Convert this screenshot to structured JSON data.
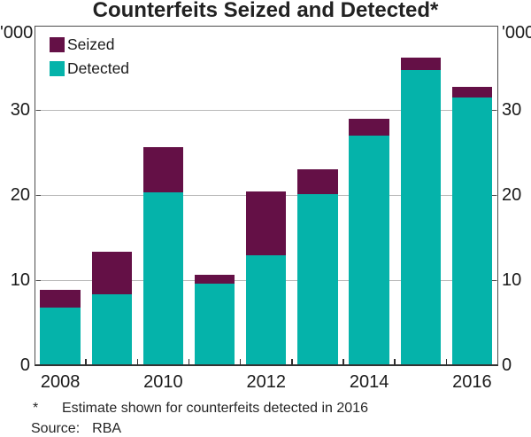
{
  "chart_data": {
    "type": "bar",
    "stacked": true,
    "title": "Counterfeits Seized and Detected*",
    "unit_label": "'000",
    "categories": [
      2008,
      2009,
      2010,
      2011,
      2012,
      2013,
      2014,
      2015,
      2016
    ],
    "series": [
      {
        "name": "Seized",
        "color": "#641046",
        "values": [
          2.1,
          5.0,
          5.3,
          1.1,
          7.5,
          2.9,
          2.0,
          1.5,
          1.3
        ]
      },
      {
        "name": "Detected",
        "color": "#05b3aa",
        "values": [
          6.8,
          8.4,
          20.4,
          9.6,
          13.0,
          20.2,
          27.0,
          34.7,
          31.5
        ]
      }
    ],
    "ylim": [
      0,
      40
    ],
    "yticks": [
      0,
      10,
      20,
      30
    ],
    "x_tick_labels": [
      "2008",
      "2010",
      "2012",
      "2014",
      "2016"
    ],
    "grid": true,
    "legend_position": "top-left",
    "footnote_marker": "*",
    "footnote_text": "Estimate shown for counterfeits detected in 2016",
    "source_label": "Source:",
    "source_value": "RBA"
  }
}
